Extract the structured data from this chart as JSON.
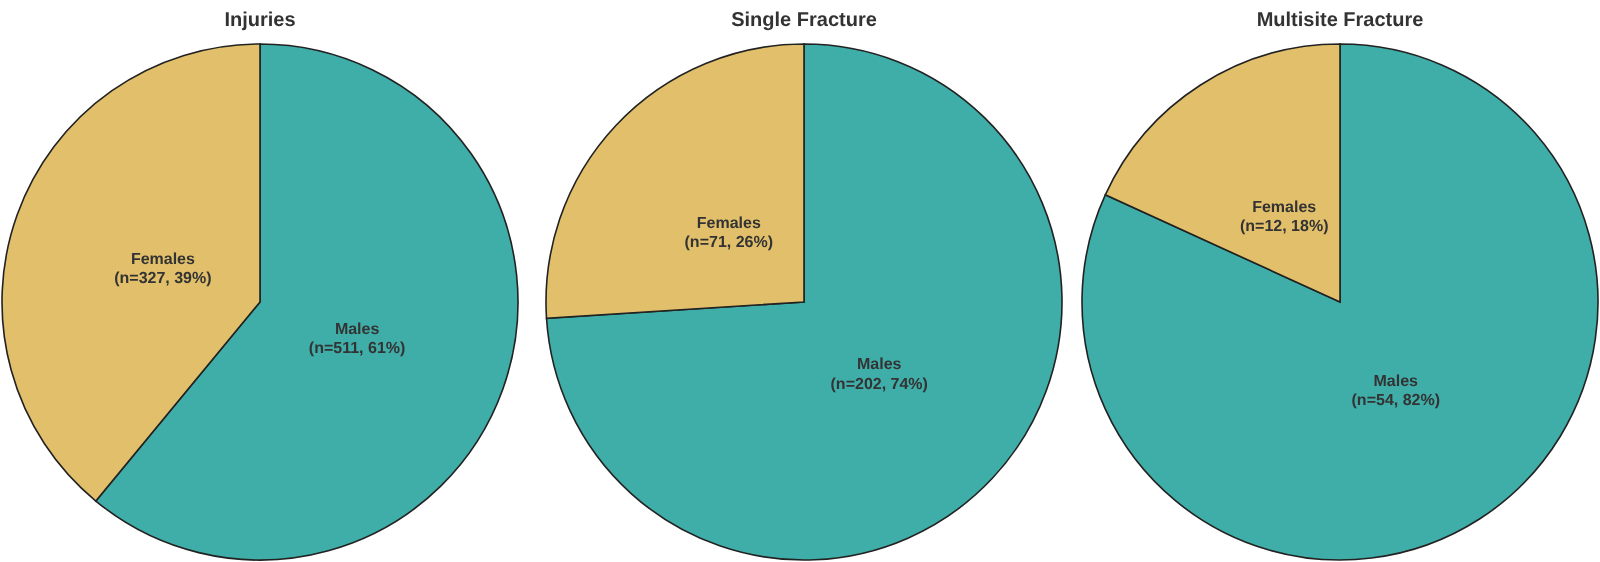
{
  "chart_data": [
    {
      "type": "pie",
      "title": "Injuries",
      "categories": [
        "Males",
        "Females"
      ],
      "values": [
        511,
        327
      ],
      "colors": [
        "#3fada8",
        "#e2c06b"
      ],
      "value_labels": [
        "(n=511, 61%)",
        "(n=327, 39%)"
      ]
    },
    {
      "type": "pie",
      "title": "Single Fracture",
      "categories": [
        "Males",
        "Females"
      ],
      "values": [
        202,
        71
      ],
      "colors": [
        "#3fada8",
        "#e2c06b"
      ],
      "value_labels": [
        "(n=202, 74%)",
        "(n=71, 26%)"
      ]
    },
    {
      "type": "pie",
      "title": "Multisite Fracture",
      "categories": [
        "Males",
        "Females"
      ],
      "values": [
        54,
        12
      ],
      "colors": [
        "#3fada8",
        "#e2c06b"
      ],
      "value_labels": [
        "(n=54, 82%)",
        "(n=12, 18%)"
      ]
    }
  ]
}
